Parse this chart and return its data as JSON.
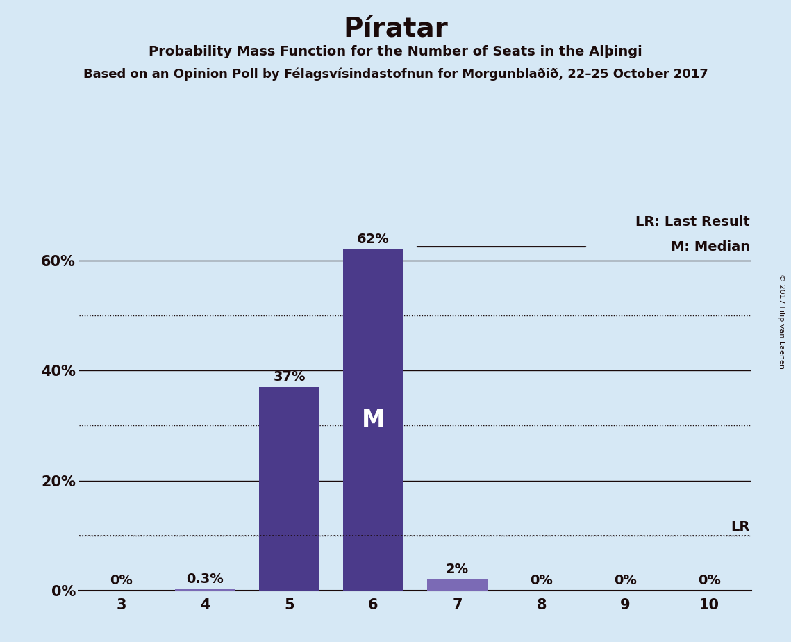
{
  "title": "Píratar",
  "subtitle1": "Probability Mass Function for the Number of Seats in the Alþingi",
  "subtitle2": "Based on an Opinion Poll by Félagsvísindastofnun for Morgunblaðið, 22–25 October 2017",
  "copyright": "© 2017 Filip van Laenen",
  "categories": [
    3,
    4,
    5,
    6,
    7,
    8,
    9,
    10
  ],
  "values": [
    0.0,
    0.3,
    37.0,
    62.0,
    2.0,
    0.0,
    0.0,
    0.0
  ],
  "bar_color": "#4b3a8a",
  "bar_color_small": "#7b6ab5",
  "background_color": "#d6e8f5",
  "median_seat": 6,
  "lr_value": 10.0,
  "lr_seat": 10,
  "solid_gridlines": [
    20,
    40,
    60
  ],
  "dotted_gridlines": [
    10,
    30,
    50
  ],
  "yticks": [
    0,
    20,
    40,
    60
  ],
  "ylim": [
    0,
    70
  ],
  "title_fontsize": 28,
  "subtitle_fontsize": 14,
  "subtitle2_fontsize": 13,
  "tick_fontsize": 15,
  "label_fontsize": 14,
  "legend_fontsize": 14
}
